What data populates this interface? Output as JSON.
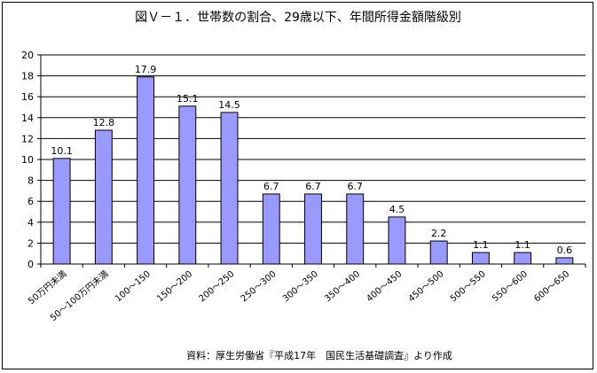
{
  "chart_data": {
    "type": "bar",
    "title": "図Ｖ－１．世帯数の割合、29歳以下、年間所得金額階級別",
    "source": "資料：厚生労働省『平成17年　国民生活基礎調査』より作成",
    "categories": [
      "50万円未満",
      "50～100万円未満",
      "100～150",
      "150～200",
      "200～250",
      "250～300",
      "300～350",
      "350～400",
      "400～450",
      "450～500",
      "500～550",
      "550～600",
      "600～650"
    ],
    "values": [
      10.1,
      12.8,
      17.9,
      15.1,
      14.5,
      6.7,
      6.7,
      6.7,
      4.5,
      2.2,
      1.1,
      1.1,
      0.6
    ],
    "data_labels": [
      "10.1",
      "12.8",
      "17.9",
      "15.1",
      "14.5",
      "6.7",
      "6.7",
      "6.7",
      "4.5",
      "2.2",
      "1.1",
      "1.1",
      "0.6"
    ],
    "ylim": [
      0,
      20
    ],
    "yticks": [
      0,
      2,
      4,
      6,
      8,
      10,
      12,
      14,
      16,
      18,
      20
    ],
    "grid": true,
    "legend": "none",
    "bar_color": "#9999ff"
  }
}
